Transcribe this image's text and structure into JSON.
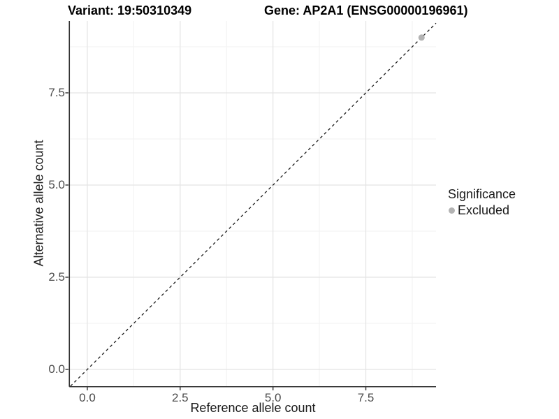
{
  "chart_data": {
    "type": "scatter",
    "title_left": "Variant: 19:50310349",
    "title_right": "Gene: AP2A1 (ENSG00000196961)",
    "xlabel": "Reference allele count",
    "ylabel": "Alternative allele count",
    "xlim": [
      -0.47,
      9.39
    ],
    "ylim": [
      -0.455,
      9.45
    ],
    "x_ticks": [
      {
        "v": 0,
        "label": "0.0"
      },
      {
        "v": 2.5,
        "label": "2.5"
      },
      {
        "v": 5,
        "label": "5.0"
      },
      {
        "v": 7.5,
        "label": "7.5"
      }
    ],
    "y_ticks": [
      {
        "v": 0,
        "label": "0.0"
      },
      {
        "v": 2.5,
        "label": "2.5"
      },
      {
        "v": 5,
        "label": "5.0"
      },
      {
        "v": 7.5,
        "label": "7.5"
      }
    ],
    "x_minor": [
      1.25,
      3.75,
      6.25,
      8.75
    ],
    "y_minor": [
      1.25,
      3.75,
      6.25,
      8.75
    ],
    "grid": true,
    "legend_position": "right",
    "series": [
      {
        "name": "Excluded",
        "color": "#b3b3b3",
        "points": [
          [
            9,
            9
          ]
        ]
      }
    ],
    "reference_line": {
      "slope": 1,
      "intercept": 0,
      "style": "dashed",
      "color": "#1a1a1a"
    },
    "legend": {
      "title": "Significance",
      "items": [
        {
          "label": "Excluded",
          "color": "#b3b3b3"
        }
      ]
    },
    "colors": {
      "background": "#ffffff",
      "grid_major": "#e4e4e4",
      "grid_minor": "#f2f2f2",
      "axis_line": "#333333",
      "tick_mark": "#333333",
      "tick_label": "#4d4d4d",
      "text": "#000000"
    }
  }
}
